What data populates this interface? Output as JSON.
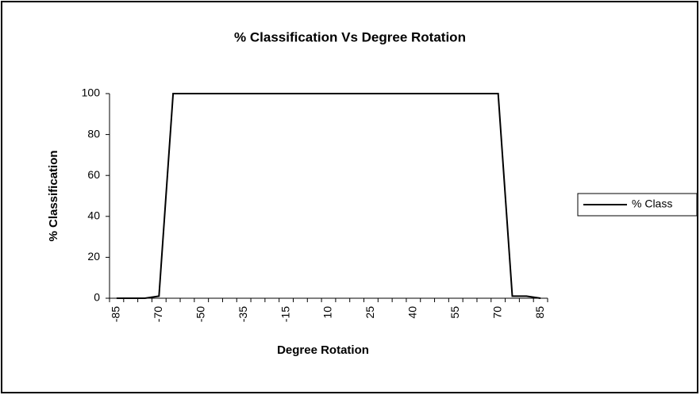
{
  "chart_data": {
    "type": "line",
    "title": "% Classification Vs Degree Rotation",
    "x_label": "Degree Rotation",
    "y_label": "% Classification",
    "categories": [
      "-85",
      null,
      null,
      "-70",
      null,
      null,
      "-50",
      null,
      null,
      "-35",
      null,
      null,
      "-15",
      null,
      null,
      "10",
      null,
      null,
      "25",
      null,
      null,
      "40",
      null,
      null,
      "55",
      null,
      null,
      "70",
      null,
      null,
      "85"
    ],
    "series": [
      {
        "name": "% Class",
        "color": "#000000",
        "values": [
          0,
          0,
          0,
          1,
          100,
          100,
          100,
          100,
          100,
          100,
          100,
          100,
          100,
          100,
          100,
          100,
          100,
          100,
          100,
          100,
          100,
          100,
          100,
          100,
          100,
          100,
          100,
          100,
          1,
          1,
          0
        ]
      }
    ],
    "ylim": [
      0,
      100
    ],
    "yticks": [
      0,
      20,
      40,
      60,
      80,
      100
    ],
    "legend": "right",
    "grid": false
  }
}
